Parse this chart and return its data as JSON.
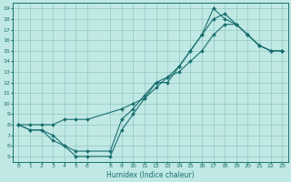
{
  "xlabel": "Humidex (Indice chaleur)",
  "bg_color": "#c0e8e4",
  "grid_color": "#90c8c4",
  "line_color": "#1a7070",
  "xlim": [
    -0.5,
    23.5
  ],
  "ylim": [
    4.5,
    19.5
  ],
  "xticks": [
    0,
    1,
    2,
    3,
    4,
    5,
    6,
    8,
    9,
    10,
    11,
    12,
    13,
    14,
    15,
    16,
    17,
    18,
    19,
    20,
    21,
    22,
    23
  ],
  "yticks": [
    5,
    6,
    7,
    8,
    9,
    10,
    11,
    12,
    13,
    14,
    15,
    16,
    17,
    18,
    19
  ],
  "line1_x": [
    0,
    1,
    2,
    3,
    4,
    5,
    6,
    8,
    9,
    10,
    11,
    12,
    13,
    14,
    15,
    16,
    17,
    18,
    19,
    20,
    21,
    22,
    23
  ],
  "line1_y": [
    8,
    7.5,
    7.5,
    6.5,
    6.0,
    5.5,
    5.5,
    5.5,
    8.5,
    9.5,
    10.8,
    12.0,
    12.5,
    13.5,
    15.0,
    16.5,
    18.0,
    18.5,
    17.5,
    16.5,
    15.5,
    15.0,
    15.0
  ],
  "line2_x": [
    0,
    1,
    2,
    3,
    4,
    5,
    6,
    8,
    9,
    10,
    11,
    12,
    13,
    14,
    15,
    16,
    17,
    18,
    19,
    20,
    21,
    22,
    23
  ],
  "line2_y": [
    8,
    7.5,
    7.5,
    7.0,
    6.0,
    5.0,
    5.0,
    5.0,
    7.5,
    9.0,
    10.5,
    12.0,
    12.0,
    13.5,
    15.0,
    16.5,
    19.0,
    18.0,
    17.5,
    16.5,
    15.5,
    15.0,
    15.0
  ],
  "line3_x": [
    0,
    1,
    2,
    3,
    4,
    5,
    6,
    9,
    10,
    11,
    12,
    13,
    14,
    15,
    16,
    17,
    18,
    19,
    20,
    21,
    22,
    23
  ],
  "line3_y": [
    8,
    8.0,
    8.0,
    8.0,
    8.5,
    8.5,
    8.5,
    9.5,
    10.0,
    10.5,
    11.5,
    12.5,
    13.0,
    14.0,
    15.0,
    16.5,
    17.5,
    17.5,
    16.5,
    15.5,
    15.0,
    15.0
  ]
}
